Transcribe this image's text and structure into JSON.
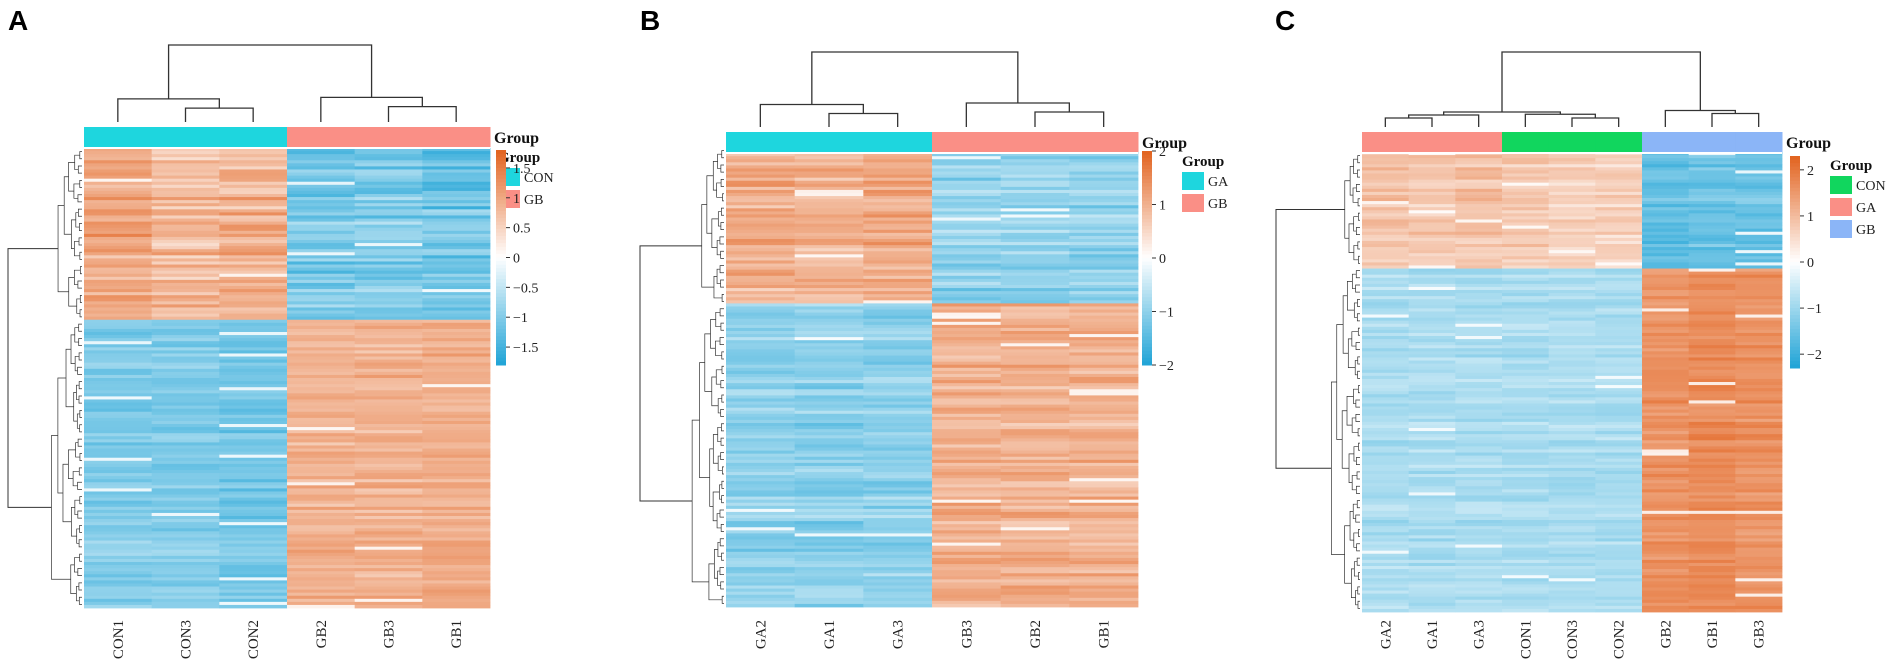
{
  "chart_data": [
    {
      "type": "heatmap",
      "panel_label": "A",
      "samples": [
        "CON1",
        "CON3",
        "CON2",
        "GB2",
        "GB3",
        "GB1"
      ],
      "sample_groups": [
        "CON",
        "CON",
        "CON",
        "GB",
        "GB",
        "GB"
      ],
      "annotation_title": "Group",
      "legend_title": "Group",
      "groups": [
        {
          "name": "CON",
          "color": "#1ed6de"
        },
        {
          "name": "GB",
          "color": "#fa8f86"
        }
      ],
      "scale": {
        "min": -1.8,
        "max": 1.8,
        "ticks": [
          1.5,
          1,
          0.5,
          0,
          -0.5,
          -1,
          -1.5
        ]
      },
      "tick_labels": [
        "1.5",
        "1",
        "0.5",
        "0",
        "−0.5",
        "−1",
        "−1.5"
      ],
      "blocks": [
        {
          "fraction": 0.37,
          "mean": [
            1.0,
            0.8,
            0.9,
            -1.1,
            -1.0,
            -1.1
          ],
          "spread": 0.45
        },
        {
          "fraction": 0.63,
          "mean": [
            -1.0,
            -1.0,
            -1.1,
            0.9,
            0.9,
            0.95
          ],
          "spread": 0.3
        }
      ],
      "colors": {
        "low": "#1fa3d6",
        "mid": "#ffffff",
        "high": "#e2621e"
      }
    },
    {
      "type": "heatmap",
      "panel_label": "B",
      "samples": [
        "GA2",
        "GA1",
        "GA3",
        "GB3",
        "GB2",
        "GB1"
      ],
      "sample_groups": [
        "GA",
        "GA",
        "GA",
        "GB",
        "GB",
        "GB"
      ],
      "annotation_title": "Group",
      "legend_title": "Group",
      "groups": [
        {
          "name": "GA",
          "color": "#1ed6de"
        },
        {
          "name": "GB",
          "color": "#fa8f86"
        }
      ],
      "scale": {
        "min": -2,
        "max": 2,
        "ticks": [
          2,
          1,
          0,
          -1,
          -2
        ]
      },
      "tick_labels": [
        "2",
        "1",
        "0",
        "−1",
        "−2"
      ],
      "blocks": [
        {
          "fraction": 0.34,
          "mean": [
            1.0,
            0.9,
            1.0,
            -1.0,
            -1.0,
            -1.0
          ],
          "spread": 0.45
        },
        {
          "fraction": 0.66,
          "mean": [
            -1.0,
            -1.0,
            -1.0,
            1.0,
            1.0,
            1.0
          ],
          "spread": 0.4
        }
      ],
      "colors": {
        "low": "#1fa3d6",
        "mid": "#ffffff",
        "high": "#e2621e"
      }
    },
    {
      "type": "heatmap",
      "panel_label": "C",
      "samples": [
        "GA2",
        "GA1",
        "GA3",
        "CON1",
        "CON3",
        "CON2",
        "GB2",
        "GB1",
        "GB3"
      ],
      "sample_groups": [
        "GA",
        "GA",
        "GA",
        "CON",
        "CON",
        "CON",
        "GB",
        "GB",
        "GB"
      ],
      "annotation_title": "Group",
      "legend_title": "Group",
      "groups": [
        {
          "name": "CON",
          "color": "#11d65e"
        },
        {
          "name": "GA",
          "color": "#fa8f86"
        },
        {
          "name": "GB",
          "color": "#8bb5f7"
        }
      ],
      "scale": {
        "min": -2.3,
        "max": 2.3,
        "ticks": [
          2,
          1,
          0,
          -1,
          -2
        ]
      },
      "tick_labels": [
        "2",
        "1",
        "0",
        "−1",
        "−2"
      ],
      "blocks": [
        {
          "fraction": 0.25,
          "mean": [
            0.9,
            0.8,
            0.9,
            0.8,
            0.7,
            0.7,
            -1.6,
            -1.5,
            -1.5
          ],
          "spread": 0.4
        },
        {
          "fraction": 0.75,
          "mean": [
            -0.85,
            -0.85,
            -0.85,
            -0.85,
            -0.85,
            -0.85,
            1.6,
            1.7,
            1.6
          ],
          "spread": 0.3
        }
      ],
      "colors": {
        "low": "#1fa3d6",
        "mid": "#ffffff",
        "high": "#e2621e"
      }
    }
  ]
}
